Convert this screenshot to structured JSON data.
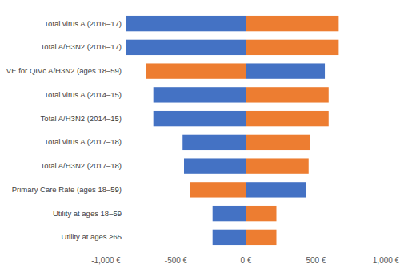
{
  "chart_data": {
    "type": "bar",
    "orientation": "horizontal",
    "grid": false,
    "categories": [
      "Total virus A (2016–17)",
      "Total A/H3N2 (2016–17)",
      "VE for QIVc A/H3N2 (ages 18–59)",
      "Total virus A (2014–15)",
      "Total A/H3N2 (2014–15)",
      "Total virus A (2017–18)",
      "Total A/H3N2 (2017–18)",
      "Primary Care Rate (ages 18–59)",
      "Utility at ages 18–59",
      "Utility at ages ≥65"
    ],
    "series": [
      {
        "values": [
          -857,
          -857,
          -714,
          -659,
          -659,
          -450,
          -440,
          -400,
          -236,
          -236
        ],
        "colors": [
          "#4472c4",
          "#4472c4",
          "#ed7d31",
          "#4472c4",
          "#4472c4",
          "#4472c4",
          "#4472c4",
          "#ed7d31",
          "#4472c4",
          "#4472c4"
        ]
      },
      {
        "values": [
          665,
          665,
          566,
          593,
          593,
          460,
          450,
          434,
          220,
          220
        ],
        "colors": [
          "#ed7d31",
          "#ed7d31",
          "#4472c4",
          "#ed7d31",
          "#ed7d31",
          "#ed7d31",
          "#ed7d31",
          "#4472c4",
          "#ed7d31",
          "#ed7d31"
        ]
      }
    ],
    "xlim": [
      -1000,
      1000
    ],
    "xticks": [
      {
        "value": -1000,
        "label": "-1,000 €"
      },
      {
        "value": -500,
        "label": "-500 €"
      },
      {
        "value": 0,
        "label": "0 €"
      },
      {
        "value": 500,
        "label": "500 €"
      },
      {
        "value": 1000,
        "label": "1,000 €"
      }
    ]
  }
}
